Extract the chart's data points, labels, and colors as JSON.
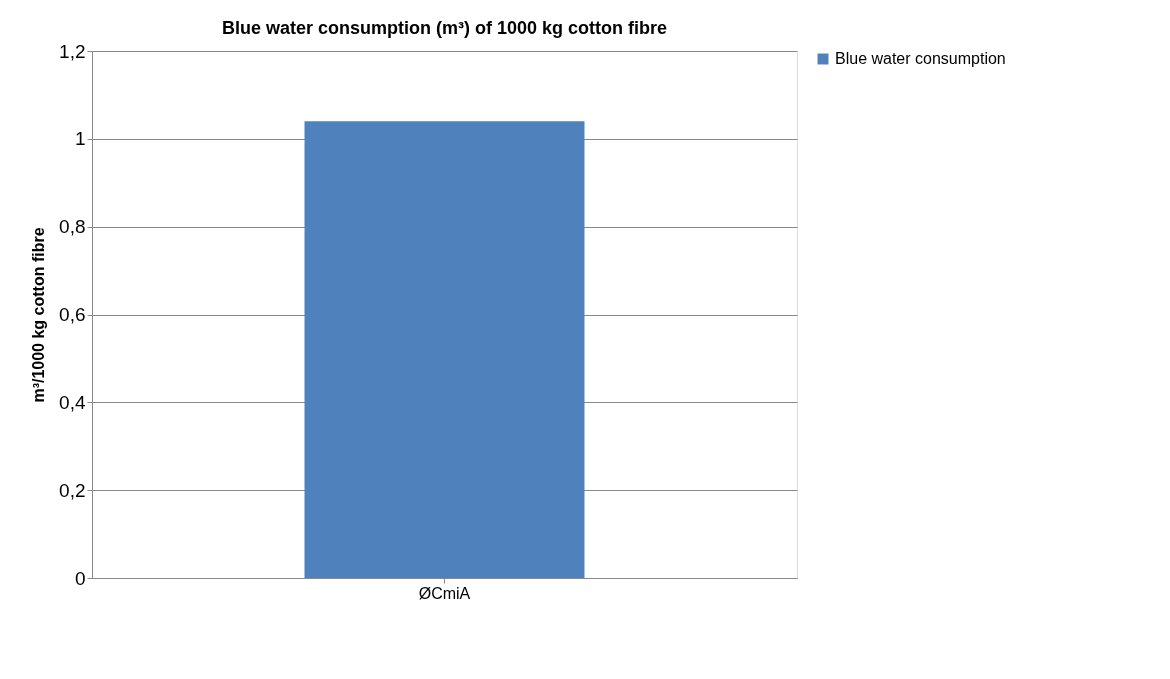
{
  "chart_data": {
    "type": "bar",
    "title": "Blue water consumption (m³) of 1000 kg cotton fibre",
    "ylabel": "m³/1000 kg cotton fibre",
    "categories": [
      "ØCmiA"
    ],
    "series": [
      {
        "name": "Blue water consumption",
        "color": "#4f81bd",
        "values": [
          1.04
        ]
      }
    ],
    "ylim": [
      0,
      1.2
    ],
    "yticks": [
      0,
      {
        "value": 0.2,
        "label": "0,2"
      },
      {
        "value": 0.4,
        "label": "0,4"
      },
      {
        "value": 0.6,
        "label": "0,6"
      },
      {
        "value": 0.8,
        "label": "0,8"
      },
      1,
      {
        "value": 1.2,
        "label": "1,2"
      }
    ],
    "grid": "y",
    "legend": "right"
  }
}
